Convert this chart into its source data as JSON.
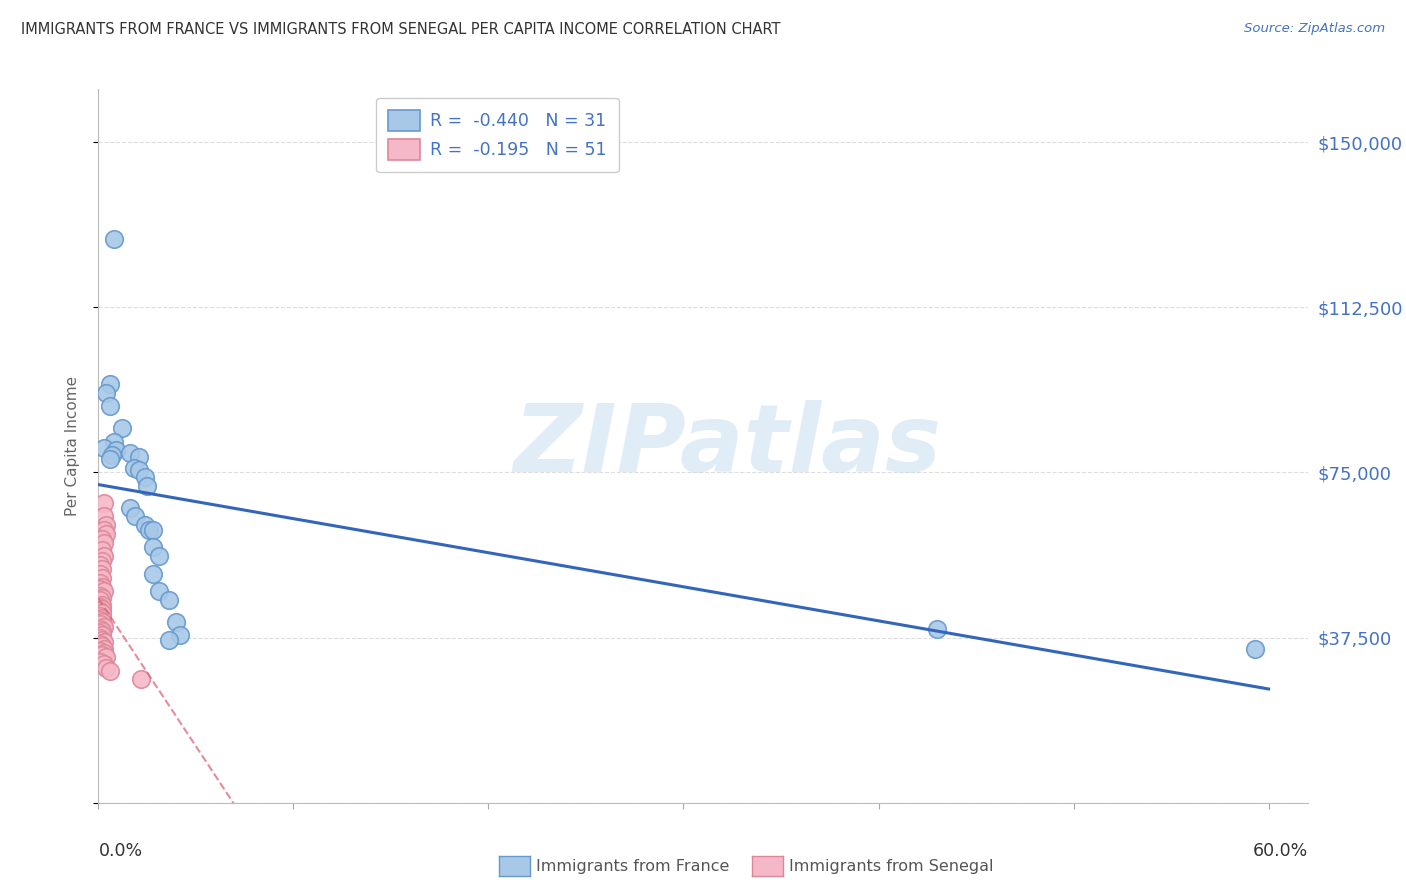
{
  "title": "IMMIGRANTS FROM FRANCE VS IMMIGRANTS FROM SENEGAL PER CAPITA INCOME CORRELATION CHART",
  "source": "Source: ZipAtlas.com",
  "ylabel": "Per Capita Income",
  "yticks": [
    0,
    37500,
    75000,
    112500,
    150000
  ],
  "ytick_labels": [
    "",
    "$37,500",
    "$75,000",
    "$112,500",
    "$150,000"
  ],
  "xticks": [
    0.0,
    0.1,
    0.2,
    0.3,
    0.4,
    0.5,
    0.6
  ],
  "xlim": [
    0.0,
    0.62
  ],
  "ylim": [
    0,
    162000
  ],
  "france_color": "#a8c8e8",
  "senegal_color": "#f5b8c8",
  "france_edge_color": "#6699cc",
  "senegal_edge_color": "#dd8899",
  "france_line_color": "#3366bb",
  "senegal_line_color": "#dd6677",
  "france_R": "-0.440",
  "france_N": "31",
  "senegal_R": "-0.195",
  "senegal_N": "51",
  "watermark_text": "ZIPatlas",
  "france_points": [
    [
      0.008,
      128000
    ],
    [
      0.006,
      95000
    ],
    [
      0.004,
      93000
    ],
    [
      0.006,
      90000
    ],
    [
      0.012,
      85000
    ],
    [
      0.008,
      82000
    ],
    [
      0.003,
      80500
    ],
    [
      0.009,
      80000
    ],
    [
      0.016,
      79500
    ],
    [
      0.007,
      79000
    ],
    [
      0.021,
      78500
    ],
    [
      0.006,
      78000
    ],
    [
      0.018,
      76000
    ],
    [
      0.021,
      75500
    ],
    [
      0.024,
      74000
    ],
    [
      0.025,
      72000
    ],
    [
      0.016,
      67000
    ],
    [
      0.019,
      65000
    ],
    [
      0.024,
      63000
    ],
    [
      0.026,
      62000
    ],
    [
      0.028,
      62000
    ],
    [
      0.028,
      58000
    ],
    [
      0.031,
      56000
    ],
    [
      0.028,
      52000
    ],
    [
      0.031,
      48000
    ],
    [
      0.036,
      46000
    ],
    [
      0.04,
      41000
    ],
    [
      0.042,
      38000
    ],
    [
      0.036,
      37000
    ],
    [
      0.43,
      39500
    ],
    [
      0.593,
      35000
    ]
  ],
  "senegal_points": [
    [
      0.003,
      68000
    ],
    [
      0.003,
      65000
    ],
    [
      0.004,
      63000
    ],
    [
      0.003,
      62000
    ],
    [
      0.004,
      61000
    ],
    [
      0.002,
      60000
    ],
    [
      0.003,
      59000
    ],
    [
      0.002,
      57500
    ],
    [
      0.003,
      56000
    ],
    [
      0.002,
      55000
    ],
    [
      0.001,
      54000
    ],
    [
      0.002,
      53000
    ],
    [
      0.001,
      52000
    ],
    [
      0.002,
      51000
    ],
    [
      0.001,
      50000
    ],
    [
      0.002,
      49000
    ],
    [
      0.001,
      48500
    ],
    [
      0.003,
      48000
    ],
    [
      0.001,
      47000
    ],
    [
      0.002,
      46500
    ],
    [
      0.001,
      46000
    ],
    [
      0.002,
      45000
    ],
    [
      0.001,
      44500
    ],
    [
      0.002,
      44000
    ],
    [
      0.001,
      43500
    ],
    [
      0.002,
      43000
    ],
    [
      0.001,
      42500
    ],
    [
      0.002,
      42000
    ],
    [
      0.001,
      41500
    ],
    [
      0.002,
      41000
    ],
    [
      0.001,
      40500
    ],
    [
      0.003,
      40000
    ],
    [
      0.001,
      39500
    ],
    [
      0.002,
      39000
    ],
    [
      0.001,
      38500
    ],
    [
      0.002,
      38000
    ],
    [
      0.001,
      37500
    ],
    [
      0.002,
      37000
    ],
    [
      0.003,
      36500
    ],
    [
      0.001,
      36000
    ],
    [
      0.002,
      35500
    ],
    [
      0.003,
      35000
    ],
    [
      0.001,
      34500
    ],
    [
      0.003,
      34000
    ],
    [
      0.002,
      33500
    ],
    [
      0.004,
      33000
    ],
    [
      0.001,
      32000
    ],
    [
      0.003,
      31500
    ],
    [
      0.004,
      30500
    ],
    [
      0.006,
      30000
    ],
    [
      0.022,
      28000
    ]
  ],
  "background_color": "#ffffff",
  "grid_color": "#dddddd",
  "title_color": "#333333",
  "ylabel_color": "#666666",
  "right_tick_color": "#4472c4",
  "bottom_label_color": "#555555"
}
